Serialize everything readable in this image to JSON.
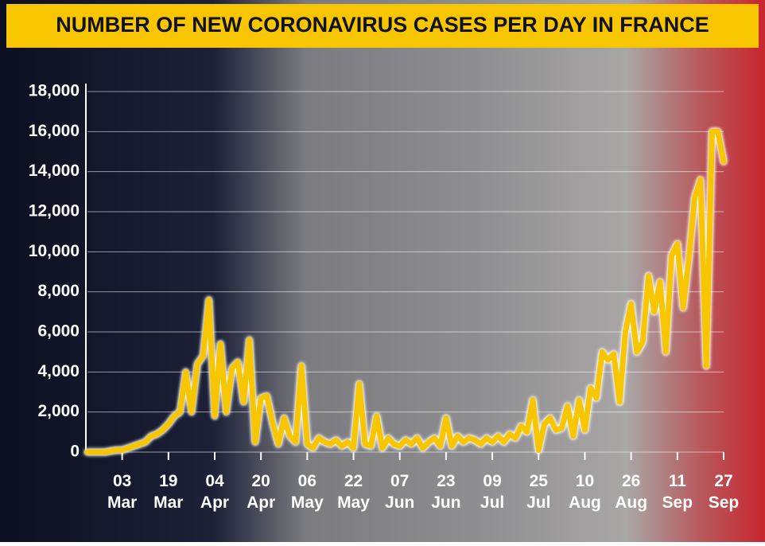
{
  "chart_data": {
    "type": "line",
    "title": "NUMBER OF NEW CORONAVIRUS CASES PER DAY IN FRANCE",
    "categories": [
      null,
      null,
      null,
      null,
      null,
      null,
      "03 Mar",
      null,
      null,
      null,
      null,
      null,
      null,
      null,
      "19 Mar",
      null,
      null,
      null,
      null,
      null,
      null,
      null,
      "04 Apr",
      null,
      null,
      null,
      null,
      null,
      null,
      null,
      "20 Apr",
      null,
      null,
      null,
      null,
      null,
      null,
      null,
      "06 May",
      null,
      null,
      null,
      null,
      null,
      null,
      null,
      "22 May",
      null,
      null,
      null,
      null,
      null,
      null,
      null,
      "07 Jun",
      null,
      null,
      null,
      null,
      null,
      null,
      null,
      "23 Jun",
      null,
      null,
      null,
      null,
      null,
      null,
      null,
      "09 Jul",
      null,
      null,
      null,
      null,
      null,
      null,
      null,
      "25 Jul",
      null,
      null,
      null,
      null,
      null,
      null,
      null,
      "10 Aug",
      null,
      null,
      null,
      null,
      null,
      null,
      null,
      "26 Aug",
      null,
      null,
      null,
      null,
      null,
      null,
      null,
      "11 Sep",
      null,
      null,
      null,
      null,
      null,
      null,
      null,
      "27 Sep"
    ],
    "values": [
      0,
      0,
      0,
      0,
      50,
      100,
      100,
      200,
      300,
      400,
      500,
      800,
      900,
      1100,
      1400,
      1800,
      2000,
      4000,
      2000,
      4400,
      4800,
      7600,
      1800,
      5400,
      2000,
      4200,
      4500,
      2500,
      5600,
      500,
      2700,
      2800,
      1500,
      400,
      1700,
      800,
      500,
      4300,
      400,
      200,
      700,
      500,
      400,
      600,
      300,
      500,
      200,
      3400,
      400,
      300,
      1800,
      200,
      700,
      400,
      300,
      600,
      400,
      700,
      200,
      500,
      700,
      300,
      1700,
      300,
      800,
      500,
      700,
      600,
      400,
      700,
      500,
      800,
      500,
      900,
      700,
      1300,
      1000,
      2600,
      100,
      1400,
      1700,
      1100,
      1200,
      2300,
      800,
      2600,
      1100,
      3200,
      2700,
      5000,
      4600,
      4900,
      2500,
      6000,
      7400,
      5000,
      5500,
      8800,
      7000,
      8500,
      5000,
      9800,
      10400,
      7200,
      9700,
      12700,
      13600,
      4300,
      16000,
      16000,
      14500
    ],
    "color": "#f7c600",
    "ylim": [
      0,
      18000
    ],
    "yticks": [
      {
        "value": 0,
        "label": "0"
      },
      {
        "value": 2000,
        "label": "2,000"
      },
      {
        "value": 4000,
        "label": "4,000"
      },
      {
        "value": 6000,
        "label": "6,000"
      },
      {
        "value": 8000,
        "label": "8,000"
      },
      {
        "value": 10000,
        "label": "10,000"
      },
      {
        "value": 12000,
        "label": "12,000"
      },
      {
        "value": 14000,
        "label": "14,000"
      },
      {
        "value": 16000,
        "label": "16,000"
      },
      {
        "value": 18000,
        "label": "18,000"
      }
    ],
    "grid": true
  }
}
